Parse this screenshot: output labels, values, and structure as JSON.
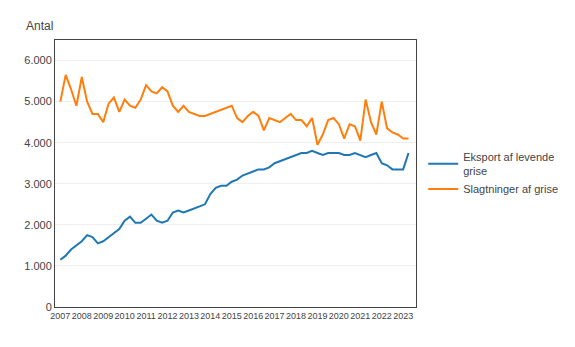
{
  "chart_data": {
    "type": "line",
    "ylabel": "Antal",
    "x": [
      2007.0,
      2007.25,
      2007.5,
      2007.75,
      2008.0,
      2008.25,
      2008.5,
      2008.75,
      2009.0,
      2009.25,
      2009.5,
      2009.75,
      2010.0,
      2010.25,
      2010.5,
      2010.75,
      2011.0,
      2011.25,
      2011.5,
      2011.75,
      2012.0,
      2012.25,
      2012.5,
      2012.75,
      2013.0,
      2013.25,
      2013.5,
      2013.75,
      2014.0,
      2014.25,
      2014.5,
      2014.75,
      2015.0,
      2015.25,
      2015.5,
      2015.75,
      2016.0,
      2016.25,
      2016.5,
      2016.75,
      2017.0,
      2017.25,
      2017.5,
      2017.75,
      2018.0,
      2018.25,
      2018.5,
      2018.75,
      2019.0,
      2019.25,
      2019.5,
      2019.75,
      2020.0,
      2020.25,
      2020.5,
      2020.75,
      2021.0,
      2021.25,
      2021.5,
      2021.75,
      2022.0,
      2022.25,
      2022.5,
      2022.75,
      2023.0,
      2023.25
    ],
    "series": [
      {
        "name": "Eksport af levende\ngrise",
        "values": [
          1150,
          1250,
          1400,
          1500,
          1600,
          1750,
          1700,
          1550,
          1600,
          1700,
          1800,
          1900,
          2100,
          2200,
          2050,
          2050,
          2150,
          2250,
          2100,
          2050,
          2100,
          2300,
          2350,
          2300,
          2350,
          2400,
          2450,
          2500,
          2750,
          2900,
          2950,
          2950,
          3050,
          3100,
          3200,
          3250,
          3300,
          3350,
          3350,
          3400,
          3500,
          3550,
          3600,
          3650,
          3700,
          3750,
          3750,
          3800,
          3750,
          3700,
          3750,
          3750,
          3750,
          3700,
          3700,
          3750,
          3700,
          3650,
          3700,
          3750,
          3500,
          3450,
          3350,
          3350,
          3350,
          3750
        ]
      },
      {
        "name": "Slagtninger af grise",
        "values": [
          5000,
          5650,
          5300,
          4900,
          5600,
          5000,
          4700,
          4700,
          4500,
          4950,
          5100,
          4750,
          5050,
          4900,
          4850,
          5050,
          5400,
          5250,
          5200,
          5350,
          5250,
          4900,
          4750,
          4900,
          4750,
          4700,
          4650,
          4650,
          4700,
          4750,
          4800,
          4850,
          4900,
          4600,
          4500,
          4650,
          4750,
          4650,
          4300,
          4600,
          4550,
          4500,
          4600,
          4700,
          4550,
          4550,
          4400,
          4600,
          3950,
          4200,
          4550,
          4600,
          4450,
          4100,
          4450,
          4400,
          4050,
          5050,
          4500,
          4200,
          5000,
          4350,
          4250,
          4200,
          4100,
          4100
        ]
      }
    ],
    "xlim": [
      2006.75,
      2023.6
    ],
    "xticks": [
      2007,
      2008,
      2009,
      2010,
      2011,
      2012,
      2013,
      2014,
      2015,
      2016,
      2017,
      2018,
      2019,
      2020,
      2021,
      2022,
      2023
    ],
    "ylim": [
      0,
      6500
    ],
    "yticks": [
      0,
      {
        "value": 1000,
        "label": "1.000"
      },
      {
        "value": 2000,
        "label": "2.000"
      },
      {
        "value": 3000,
        "label": "3.000"
      },
      {
        "value": 4000,
        "label": "4.000"
      },
      {
        "value": 5000,
        "label": "5.000"
      },
      {
        "value": 6000,
        "label": "6.000"
      }
    ],
    "grid": "y",
    "legend": "right"
  }
}
